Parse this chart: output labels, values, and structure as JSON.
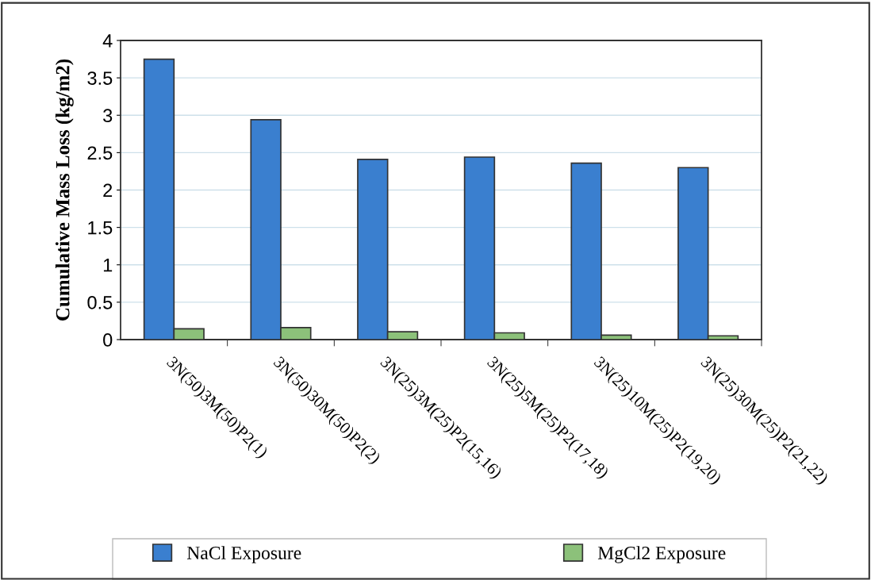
{
  "chart_data": {
    "type": "bar",
    "ylabel": "Cumulative Mass Loss (kg/m2)",
    "categories": [
      "3N(50)3M(50)P2(1)",
      "3N(50)30M(50)P2(2)",
      "3N(25)3M(25)P2(15,16)",
      "3N(25)5M(25)P2(17,18)",
      "3N(25)10M(25)P2(19,20)",
      "3N(25)30M(25)P2(21,22)"
    ],
    "series": [
      {
        "name": "NaCl Exposure",
        "color": "#3a7fcf",
        "values": [
          3.75,
          2.94,
          2.41,
          2.44,
          2.36,
          2.3
        ]
      },
      {
        "name": "MgCl2 Exposure",
        "color": "#8cc17a",
        "values": [
          0.145,
          0.16,
          0.105,
          0.09,
          0.06,
          0.05
        ]
      }
    ],
    "ylim": [
      0,
      4
    ],
    "yticks": [
      0,
      0.5,
      1,
      1.5,
      2,
      2.5,
      3,
      3.5,
      4
    ],
    "grid": "y",
    "legend": "bottom"
  }
}
